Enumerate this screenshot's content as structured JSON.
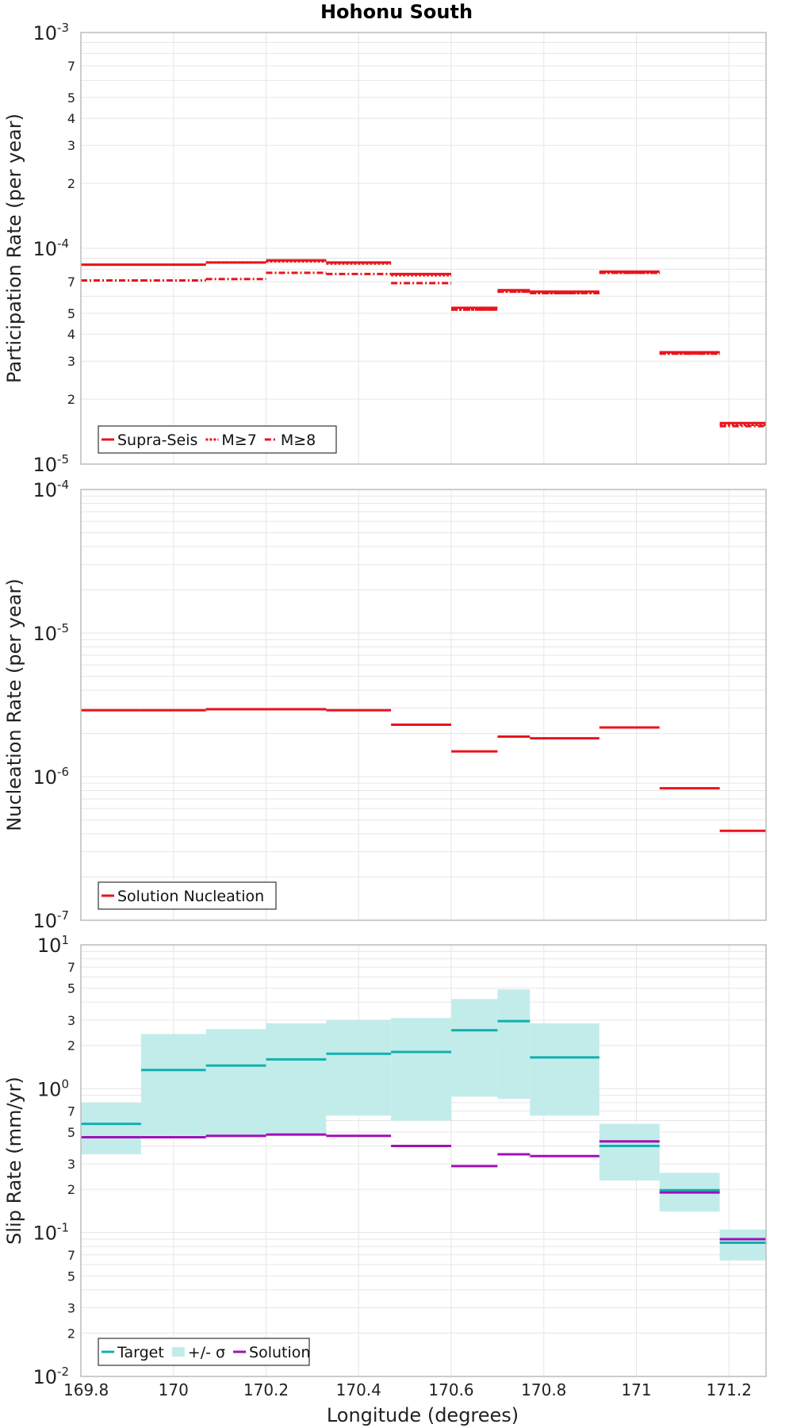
{
  "chart_data": {
    "type": "line",
    "title": "Hohonu South",
    "xlabel": "Longitude (degrees)",
    "xlim": [
      169.8,
      171.28
    ],
    "x_ticks": [
      "169.8",
      "170",
      "170.2",
      "170.4",
      "170.6",
      "170.8",
      "171",
      "171.2"
    ],
    "x_tick_values": [
      169.8,
      170.0,
      170.2,
      170.4,
      170.6,
      170.8,
      171.0,
      171.2
    ],
    "segment_edges": [
      169.8,
      169.93,
      170.07,
      170.2,
      170.33,
      170.47,
      170.6,
      170.7,
      170.77,
      170.92,
      171.05,
      171.18,
      171.28
    ],
    "colors": {
      "red": "#e8141c",
      "target": "#10b0b0",
      "band": "#c2ecea",
      "solution": "#a010b8",
      "grid": "#e6e6e6",
      "frame": "#bbbbbb"
    },
    "panels": [
      {
        "ylabel": "Participation Rate (per year)",
        "yscale": "log",
        "ylim": [
          1e-05,
          0.001
        ],
        "y_major": [
          {
            "base": "10",
            "exp": "-5",
            "value": 1e-05
          },
          {
            "base": "10",
            "exp": "-4",
            "value": 0.0001
          },
          {
            "base": "10",
            "exp": "-3",
            "value": 0.001
          }
        ],
        "y_minor": [
          {
            "label": "2",
            "value": 2e-05
          },
          {
            "label": "3",
            "value": 3e-05
          },
          {
            "label": "4",
            "value": 4e-05
          },
          {
            "label": "5",
            "value": 5e-05
          },
          {
            "label": "7",
            "value": 7e-05
          },
          {
            "label": "2",
            "value": 0.0002
          },
          {
            "label": "3",
            "value": 0.0003
          },
          {
            "label": "4",
            "value": 0.0004
          },
          {
            "label": "5",
            "value": 0.0005
          },
          {
            "label": "7",
            "value": 0.0007
          }
        ],
        "legend": [
          "Supra-Seis",
          "M≥7",
          "M≥8"
        ],
        "series": [
          {
            "name": "Supra-Seis",
            "style": "solid",
            "values": [
              8.4e-05,
              8.4e-05,
              8.6e-05,
              8.8e-05,
              8.6e-05,
              7.6e-05,
              5.3e-05,
              6.4e-05,
              6.3e-05,
              7.8e-05,
              3.3e-05,
              1.55e-05
            ]
          },
          {
            "name": "M≥7",
            "style": "dotted",
            "values": [
              8.4e-05,
              8.4e-05,
              8.6e-05,
              8.7e-05,
              8.5e-05,
              7.5e-05,
              5.2e-05,
              6.3e-05,
              6.2e-05,
              7.7e-05,
              3.25e-05,
              1.52e-05
            ]
          },
          {
            "name": "M≥8",
            "style": "dashdot",
            "values": [
              7.1e-05,
              7.1e-05,
              7.2e-05,
              7.7e-05,
              7.6e-05,
              6.9e-05,
              5.2e-05,
              6.3e-05,
              6.2e-05,
              7.7e-05,
              3.25e-05,
              1.5e-05
            ]
          }
        ]
      },
      {
        "ylabel": "Nucleation Rate (per year)",
        "yscale": "log",
        "ylim": [
          1e-07,
          0.0001
        ],
        "y_major": [
          {
            "base": "10",
            "exp": "-7",
            "value": 1e-07
          },
          {
            "base": "10",
            "exp": "-6",
            "value": 1e-06
          },
          {
            "base": "10",
            "exp": "-5",
            "value": 1e-05
          },
          {
            "base": "10",
            "exp": "-4",
            "value": 0.0001
          }
        ],
        "y_minor": [],
        "legend": [
          "Solution Nucleation"
        ],
        "series": [
          {
            "name": "Solution Nucleation",
            "style": "solid",
            "values": [
              2.9e-06,
              2.9e-06,
              2.95e-06,
              2.95e-06,
              2.9e-06,
              2.3e-06,
              1.5e-06,
              1.9e-06,
              1.85e-06,
              2.2e-06,
              8.3e-07,
              4.2e-07
            ]
          }
        ]
      },
      {
        "ylabel": "Slip Rate (mm/yr)",
        "yscale": "log",
        "ylim": [
          0.01,
          10
        ],
        "y_major": [
          {
            "base": "10",
            "exp": "-2",
            "value": 0.01
          },
          {
            "base": "10",
            "exp": "-1",
            "value": 0.1
          },
          {
            "base": "10",
            "exp": "0",
            "value": 1
          },
          {
            "base": "10",
            "exp": "1",
            "value": 10
          }
        ],
        "y_minor": [
          {
            "label": "2",
            "value": 0.02
          },
          {
            "label": "3",
            "value": 0.03
          },
          {
            "label": "5",
            "value": 0.05
          },
          {
            "label": "7",
            "value": 0.07
          },
          {
            "label": "2",
            "value": 0.2
          },
          {
            "label": "3",
            "value": 0.3
          },
          {
            "label": "5",
            "value": 0.5
          },
          {
            "label": "7",
            "value": 0.7
          },
          {
            "label": "2",
            "value": 2
          },
          {
            "label": "3",
            "value": 3
          },
          {
            "label": "5",
            "value": 5
          },
          {
            "label": "7",
            "value": 7
          }
        ],
        "legend": [
          "Target",
          "+/- σ",
          "Solution"
        ],
        "band": {
          "name": "+/- σ",
          "low": [
            0.35,
            0.47,
            0.46,
            0.48,
            0.65,
            0.6,
            0.88,
            0.85,
            0.65,
            0.23,
            0.14,
            0.064
          ],
          "high": [
            0.8,
            2.4,
            2.6,
            2.85,
            3.0,
            3.1,
            4.2,
            4.9,
            2.85,
            0.57,
            0.26,
            0.105
          ]
        },
        "series": [
          {
            "name": "Target",
            "style": "solid",
            "values": [
              0.57,
              1.35,
              1.45,
              1.6,
              1.75,
              1.8,
              2.55,
              2.95,
              1.65,
              0.4,
              0.197,
              0.085
            ]
          },
          {
            "name": "Solution",
            "style": "solid",
            "values": [
              0.46,
              0.46,
              0.47,
              0.48,
              0.47,
              0.4,
              0.29,
              0.35,
              0.34,
              0.43,
              0.19,
              0.09
            ]
          }
        ]
      }
    ]
  }
}
